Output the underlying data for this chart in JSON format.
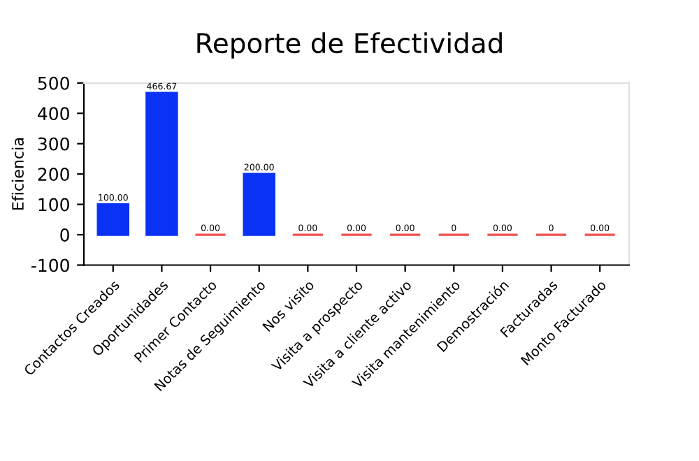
{
  "chart_data": {
    "type": "bar",
    "title": "Reporte de Efectividad",
    "ylabel": "Eficiencia",
    "categories": [
      "Contactos Creados",
      "Oportunidades",
      "Primer Contacto",
      "Notas de Seguimiento",
      "Nos visito",
      "Visita a prospecto",
      "Visita a cliente activo",
      "Visita mantenimiento",
      "Demostración",
      "Facturadas",
      "Monto Facturado"
    ],
    "values": [
      100,
      466.67,
      0,
      200,
      0,
      0,
      0,
      0,
      0,
      0,
      0
    ],
    "value_labels": [
      "100.00",
      "466.67",
      "0.00",
      "200.00",
      "0.00",
      "0.00",
      "0.00",
      "0",
      "0.00",
      "0",
      "0.00"
    ],
    "colors": [
      "#0a32f5",
      "#0a32f5",
      "#f05050",
      "#0a32f5",
      "#f05050",
      "#f05050",
      "#f05050",
      "#f05050",
      "#f05050",
      "#f05050",
      "#f05050"
    ],
    "ylim": [
      -100,
      500
    ],
    "yticks": [
      -100,
      0,
      100,
      200,
      300,
      400,
      500
    ],
    "grid": false
  }
}
